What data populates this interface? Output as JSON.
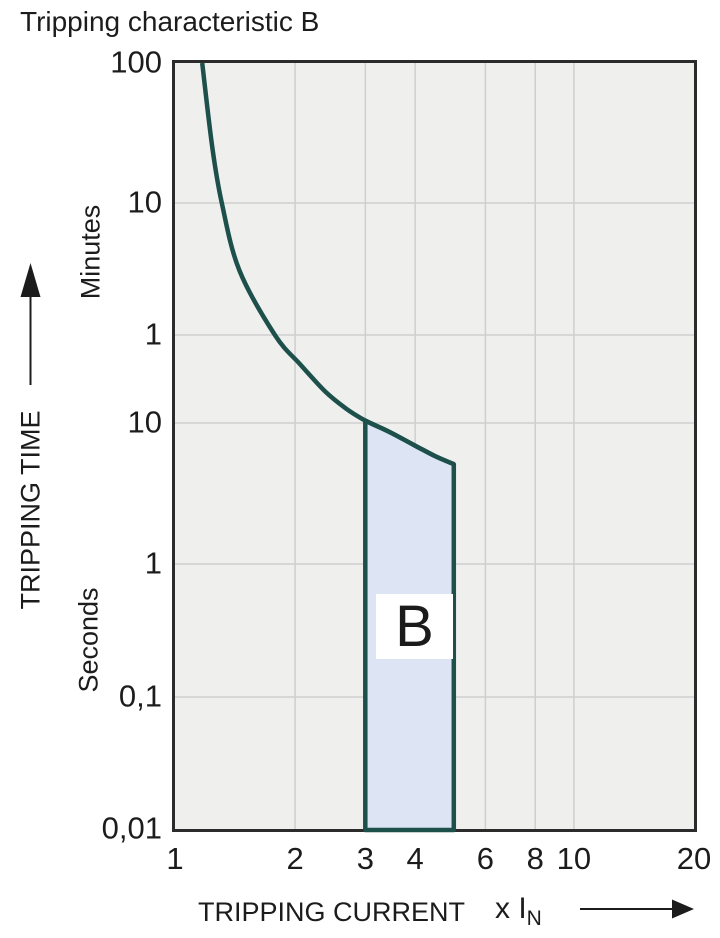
{
  "title": "Tripping characteristic B",
  "colors": {
    "curve": "#1d4f4b",
    "region_fill": "#dde4f3",
    "plot_background": "#efefee",
    "gridline": "#cfcfcf",
    "plot_border": "#2b2b2b",
    "text": "#1c1c1c"
  },
  "chart_data": {
    "type": "line",
    "title": "Tripping characteristic B",
    "xlabel": "TRIPPING CURRENT",
    "x_suffix": {
      "text": "x I",
      "sub": "N"
    },
    "ylabel": "TRIPPING TIME",
    "y_unit_top": "Minutes",
    "y_unit_bottom": "Seconds",
    "x_scale": "log",
    "x_range": [
      1,
      20
    ],
    "y_scale": "log, minutes scale stacked above seconds scale",
    "y_range": [
      "0,01 seconds",
      "100 minutes"
    ],
    "grid": "on",
    "x_ticks": [
      {
        "label": "1",
        "value": 1
      },
      {
        "label": "2",
        "value": 2
      },
      {
        "label": "3",
        "value": 3
      },
      {
        "label": "4",
        "value": 4
      },
      {
        "label": "6",
        "value": 6
      },
      {
        "label": "8",
        "value": 8
      },
      {
        "label": "10",
        "value": 10
      },
      {
        "label": "20",
        "value": 20
      }
    ],
    "x_gridline_values": [
      2,
      3,
      4,
      6,
      8,
      10
    ],
    "y_ticks": [
      {
        "label": "100",
        "unit": "minutes",
        "seconds": 6000
      },
      {
        "label": "10",
        "unit": "minutes",
        "seconds": 600
      },
      {
        "label": "1",
        "unit": "minutes",
        "seconds": 60
      },
      {
        "label": "10",
        "unit": "seconds",
        "seconds": 10
      },
      {
        "label": "1",
        "unit": "seconds",
        "seconds": 1
      },
      {
        "label": "0,1",
        "unit": "seconds",
        "seconds": 0.1
      },
      {
        "label": "0,01",
        "unit": "seconds",
        "seconds": 0.01
      }
    ],
    "series": [
      {
        "name": "tripping curve (thermal release)",
        "points_x_multiple_of_In_vs_time_seconds": [
          [
            1.17,
            6000
          ],
          [
            1.24,
            1500
          ],
          [
            1.31,
            600
          ],
          [
            1.45,
            185
          ],
          [
            1.78,
            60
          ],
          [
            2.06,
            33
          ],
          [
            2.38,
            19
          ],
          [
            2.67,
            13.6
          ],
          [
            3.0,
            10.5
          ],
          [
            3.46,
            8.6
          ],
          [
            4.0,
            6.9
          ],
          [
            4.5,
            5.8
          ],
          [
            5.0,
            5.1
          ]
        ]
      }
    ],
    "region_B": {
      "label": "B",
      "x_left": 3,
      "x_right": 5,
      "top_time_seconds_at_left": 10.5,
      "top_time_seconds_at_right": 5.1,
      "bottom_time_seconds": 0.01
    }
  }
}
